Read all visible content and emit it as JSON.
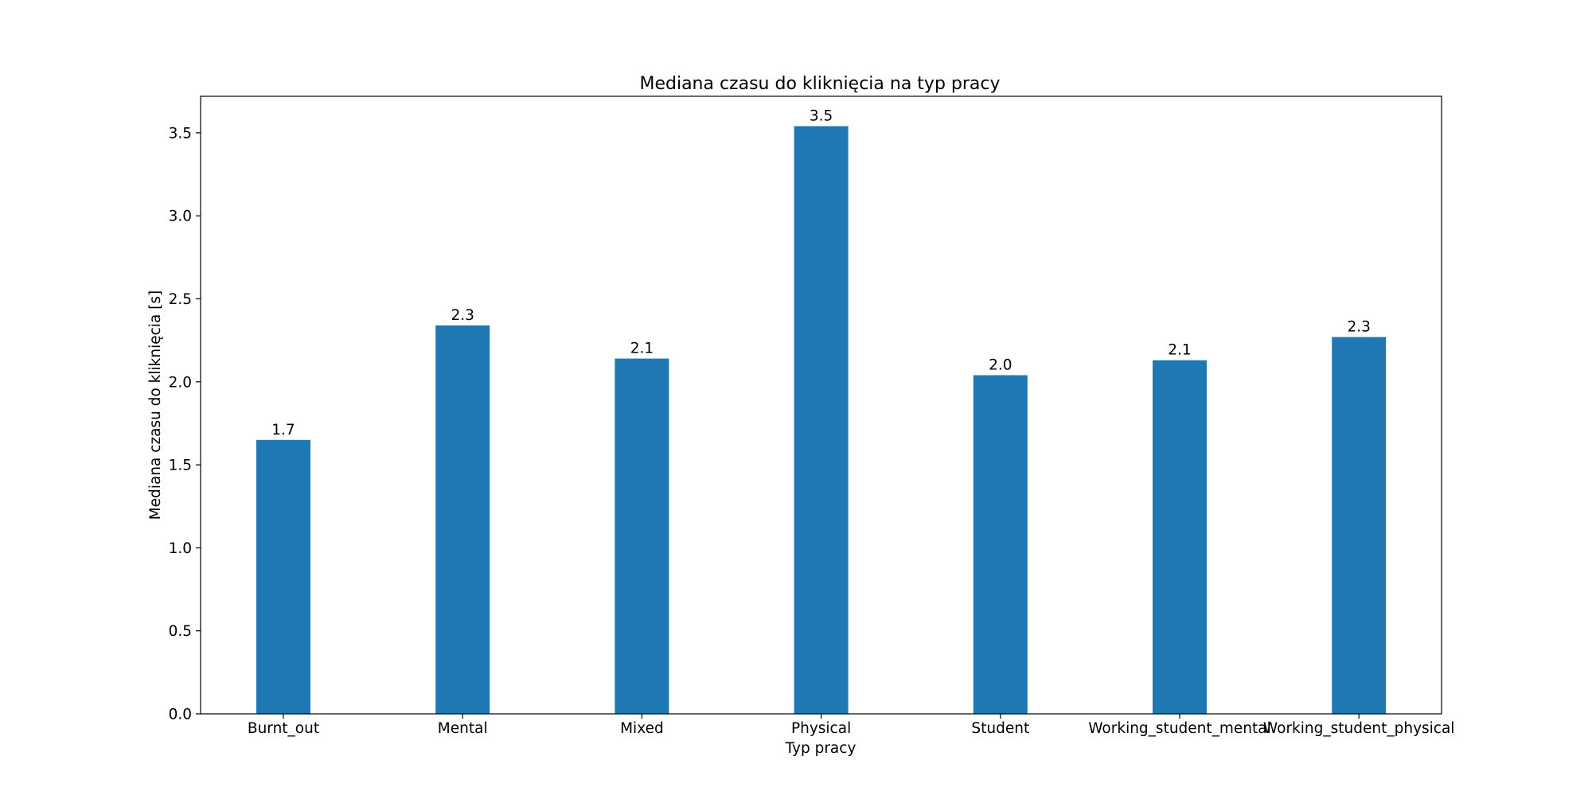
{
  "chart_data": {
    "type": "bar",
    "title": "Mediana czasu do kliknięcia na typ pracy",
    "xlabel": "Typ pracy",
    "ylabel": "Mediana czasu do kliknięcia [s]",
    "categories": [
      "Burnt_out",
      "Mental",
      "Mixed",
      "Physical",
      "Student",
      "Working_student_mental",
      "Working_student_physical"
    ],
    "values": [
      1.65,
      2.34,
      2.14,
      3.54,
      2.04,
      2.13,
      2.27
    ],
    "data_labels": [
      "1.7",
      "2.3",
      "2.1",
      "3.5",
      "2.0",
      "2.1",
      "2.3"
    ],
    "ylim": [
      0,
      3.72
    ],
    "yticks": [
      0.0,
      0.5,
      1.0,
      1.5,
      2.0,
      2.5,
      3.0,
      3.5
    ],
    "ytick_labels": [
      "0.0",
      "0.5",
      "1.0",
      "1.5",
      "2.0",
      "2.5",
      "3.0",
      "3.5"
    ],
    "bar_color": "#1f77b4",
    "grid": false,
    "legend": "none"
  }
}
